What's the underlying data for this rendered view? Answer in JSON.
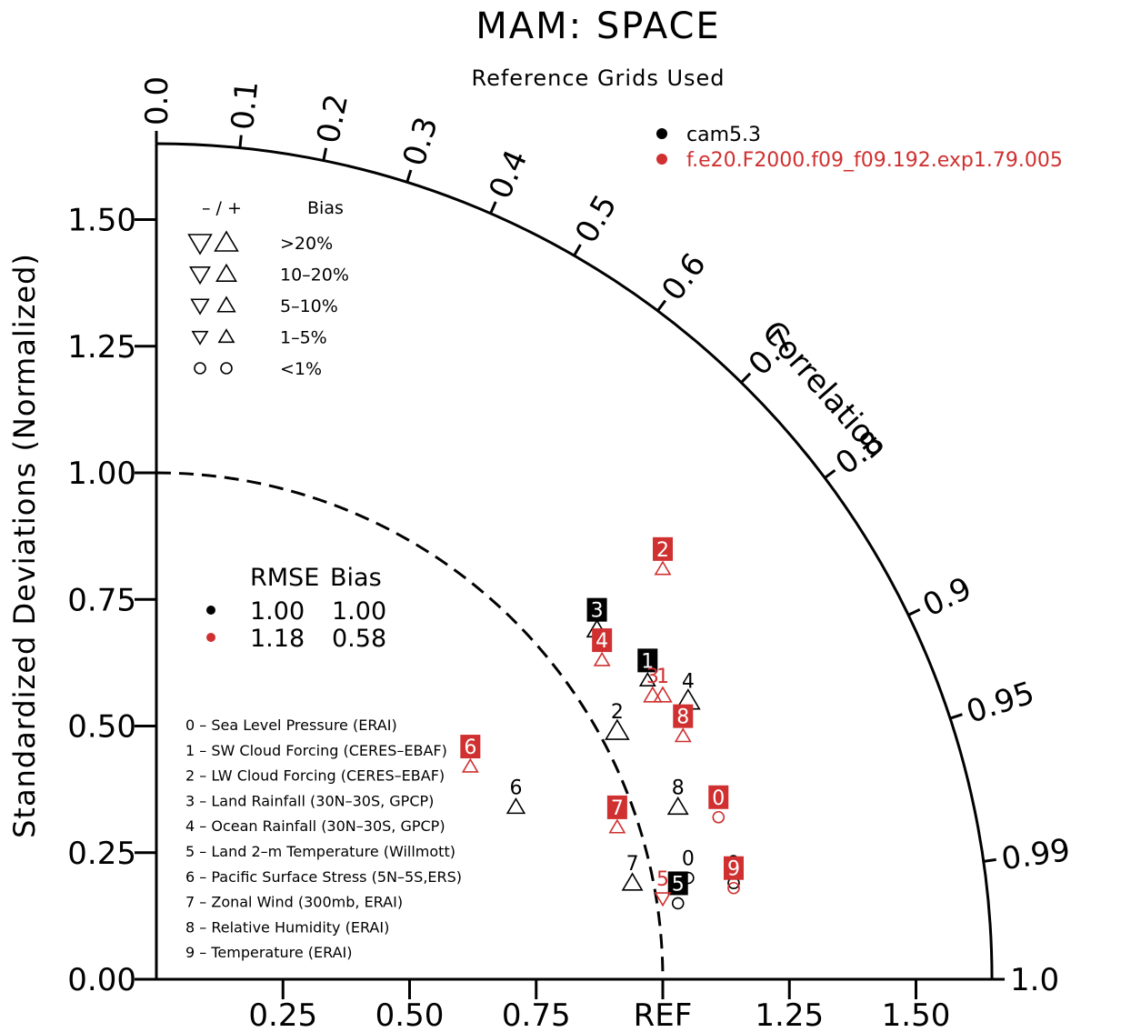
{
  "chart_data": {
    "type": "taylor",
    "title": "MAM: SPACE",
    "subtitle": "Reference Grids Used",
    "ylabel": "Standardized Deviations (Normalized)",
    "correlation_label": "Correlation",
    "ref_label": "REF",
    "y_ticks": [
      {
        "value": 0.0,
        "label": "0.00"
      },
      {
        "value": 0.25,
        "label": "0.25"
      },
      {
        "value": 0.5,
        "label": "0.50"
      },
      {
        "value": 0.75,
        "label": "0.75"
      },
      {
        "value": 1.0,
        "label": "1.00"
      },
      {
        "value": 1.25,
        "label": "1.25"
      },
      {
        "value": 1.5,
        "label": "1.50"
      }
    ],
    "x_ticks": [
      {
        "value": 0.25,
        "label": "0.25"
      },
      {
        "value": 0.5,
        "label": "0.50"
      },
      {
        "value": 0.75,
        "label": "0.75"
      },
      {
        "value": 1.25,
        "label": "1.25"
      },
      {
        "value": 1.5,
        "label": "1.50"
      }
    ],
    "corr_ticks": [
      {
        "value": 0.0,
        "label": "0.0"
      },
      {
        "value": 0.1,
        "label": "0.1"
      },
      {
        "value": 0.2,
        "label": "0.2"
      },
      {
        "value": 0.3,
        "label": "0.3"
      },
      {
        "value": 0.4,
        "label": "0.4"
      },
      {
        "value": 0.5,
        "label": "0.5"
      },
      {
        "value": 0.6,
        "label": "0.6"
      },
      {
        "value": 0.7,
        "label": "0.7"
      },
      {
        "value": 0.8,
        "label": "0.8"
      },
      {
        "value": 0.9,
        "label": "0.9"
      },
      {
        "value": 0.95,
        "label": "0.95"
      },
      {
        "value": 0.99,
        "label": "0.99"
      },
      {
        "value": 1.0,
        "label": "1.0"
      }
    ],
    "max_std": 1.65,
    "models": [
      {
        "name": "cam5.3",
        "color": "#000000",
        "rmse": "1.00",
        "bias": "1.00"
      },
      {
        "name": "f.e20.F2000.f09_f09.192.exp1.79.005",
        "color": "#d03030",
        "rmse": "1.18",
        "bias": "0.58"
      }
    ],
    "stats_header": {
      "rmse": "RMSE",
      "bias": "Bias"
    },
    "bias_legend": {
      "header_signs": "– / +",
      "header_label": "Bias",
      "rows": [
        {
          "label": ">20%",
          "size": 14
        },
        {
          "label": "10–20%",
          "size": 11
        },
        {
          "label": "5–10%",
          "size": 9
        },
        {
          "label": "1–5%",
          "size": 7
        },
        {
          "label": "<1%",
          "size": 0
        }
      ]
    },
    "variables": [
      {
        "id": "0",
        "label": "0 – Sea Level Pressure (ERAI)"
      },
      {
        "id": "1",
        "label": "1 – SW Cloud Forcing (CERES–EBAF)"
      },
      {
        "id": "2",
        "label": "2 – LW Cloud Forcing (CERES–EBAF)"
      },
      {
        "id": "3",
        "label": "3 – Land Rainfall (30N–30S, GPCP)"
      },
      {
        "id": "4",
        "label": "4 – Ocean Rainfall (30N–30S, GPCP)"
      },
      {
        "id": "5",
        "label": "5 – Land 2–m Temperature (Willmott)"
      },
      {
        "id": "6",
        "label": "6 – Pacific Surface Stress (5N–5S,ERS)"
      },
      {
        "id": "7",
        "label": "7 – Zonal Wind (300mb, ERAI)"
      },
      {
        "id": "8",
        "label": "8 – Relative Humidity (ERAI)"
      },
      {
        "id": "9",
        "label": "9 – Temperature (ERAI)"
      }
    ],
    "points": [
      {
        "model": 0,
        "var": "0",
        "x": 1.05,
        "y": 0.2,
        "marker": "circle",
        "size": 0,
        "boxed": false
      },
      {
        "model": 0,
        "var": "1",
        "x": 0.97,
        "y": 0.59,
        "marker": "up",
        "size": 7,
        "boxed": true
      },
      {
        "model": 0,
        "var": "2",
        "x": 0.91,
        "y": 0.49,
        "marker": "up",
        "size": 14,
        "boxed": false
      },
      {
        "model": 0,
        "var": "3",
        "x": 0.87,
        "y": 0.69,
        "marker": "up",
        "size": 11,
        "boxed": true
      },
      {
        "model": 0,
        "var": "4",
        "x": 1.05,
        "y": 0.55,
        "marker": "up",
        "size": 14,
        "boxed": false
      },
      {
        "model": 0,
        "var": "5",
        "x": 1.03,
        "y": 0.15,
        "marker": "circle",
        "size": 0,
        "boxed": true
      },
      {
        "model": 0,
        "var": "6",
        "x": 0.71,
        "y": 0.34,
        "marker": "up",
        "size": 9,
        "boxed": false
      },
      {
        "model": 0,
        "var": "7",
        "x": 0.94,
        "y": 0.19,
        "marker": "up",
        "size": 11,
        "boxed": false
      },
      {
        "model": 0,
        "var": "8",
        "x": 1.03,
        "y": 0.34,
        "marker": "up",
        "size": 11,
        "boxed": false
      },
      {
        "model": 0,
        "var": "9",
        "x": 1.14,
        "y": 0.19,
        "marker": "circle",
        "size": 0,
        "boxed": false
      },
      {
        "model": 1,
        "var": "0",
        "x": 1.11,
        "y": 0.32,
        "marker": "circle",
        "size": 0,
        "boxed": true
      },
      {
        "model": 1,
        "var": "1",
        "x": 1.0,
        "y": 0.56,
        "marker": "up",
        "size": 9,
        "boxed": false
      },
      {
        "model": 1,
        "var": "2",
        "x": 1.0,
        "y": 0.81,
        "marker": "up",
        "size": 7,
        "boxed": true
      },
      {
        "model": 1,
        "var": "3",
        "x": 0.98,
        "y": 0.56,
        "marker": "up",
        "size": 9,
        "boxed": false
      },
      {
        "model": 1,
        "var": "4",
        "x": 0.88,
        "y": 0.63,
        "marker": "up",
        "size": 7,
        "boxed": true
      },
      {
        "model": 1,
        "var": "5",
        "x": 1.0,
        "y": 0.16,
        "marker": "down",
        "size": 0,
        "boxed": false
      },
      {
        "model": 1,
        "var": "6",
        "x": 0.62,
        "y": 0.42,
        "marker": "up",
        "size": 7,
        "boxed": true
      },
      {
        "model": 1,
        "var": "7",
        "x": 0.91,
        "y": 0.3,
        "marker": "up",
        "size": 7,
        "boxed": true
      },
      {
        "model": 1,
        "var": "8",
        "x": 1.04,
        "y": 0.48,
        "marker": "up",
        "size": 7,
        "boxed": true
      },
      {
        "model": 1,
        "var": "9",
        "x": 1.14,
        "y": 0.18,
        "marker": "circle",
        "size": 0,
        "boxed": true
      }
    ]
  }
}
